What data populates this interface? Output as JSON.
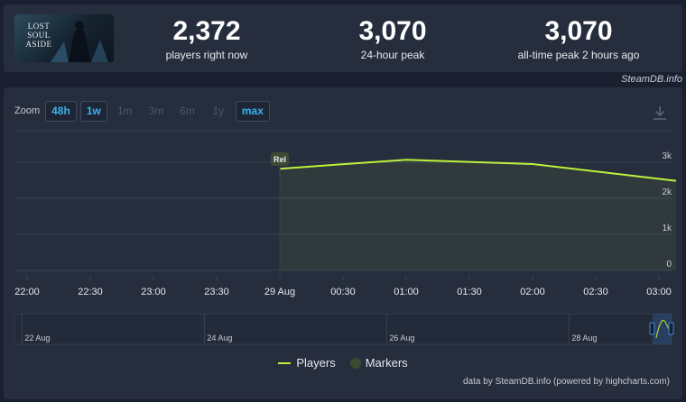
{
  "game": {
    "logo_text": "LOST SOUL ASIDE"
  },
  "stats": [
    {
      "value": "2,372",
      "label": "players right now"
    },
    {
      "value": "3,070",
      "label": "24-hour peak"
    },
    {
      "value": "3,070",
      "label": "all-time peak 2 hours ago"
    }
  ],
  "source_credit": "SteamDB.info",
  "zoom": {
    "label": "Zoom",
    "buttons": [
      {
        "label": "48h",
        "state": "active"
      },
      {
        "label": "1w",
        "state": "active"
      },
      {
        "label": "1m",
        "state": "disabled"
      },
      {
        "label": "3m",
        "state": "disabled"
      },
      {
        "label": "6m",
        "state": "disabled"
      },
      {
        "label": "1y",
        "state": "disabled"
      },
      {
        "label": "max",
        "state": "active"
      }
    ]
  },
  "legend": {
    "players": "Players",
    "markers": "Markers"
  },
  "credits": "data by SteamDB.info (powered by highcharts.com)",
  "chart_data": {
    "type": "area",
    "series": [
      {
        "name": "Players",
        "color": "#bcf23b",
        "points": [
          {
            "t": "2025-08-29 00:00",
            "v": 2820
          },
          {
            "t": "2025-08-29 01:00",
            "v": 3070
          },
          {
            "t": "2025-08-29 02:00",
            "v": 2950
          },
          {
            "t": "2025-08-29 03:00",
            "v": 2540
          }
        ]
      }
    ],
    "markers": [
      {
        "t": "2025-08-29 00:00",
        "label": "Rel"
      }
    ],
    "x_range": [
      "2025-08-28 22:00",
      "2025-08-29 03:00"
    ],
    "x_ticks": [
      {
        "t": "2025-08-28 22:00",
        "label": "22:00"
      },
      {
        "t": "2025-08-28 22:30",
        "label": "22:30"
      },
      {
        "t": "2025-08-28 23:00",
        "label": "23:00"
      },
      {
        "t": "2025-08-28 23:30",
        "label": "23:30"
      },
      {
        "t": "2025-08-29 00:00",
        "label": "29 Aug"
      },
      {
        "t": "2025-08-29 00:30",
        "label": "00:30"
      },
      {
        "t": "2025-08-29 01:00",
        "label": "01:00"
      },
      {
        "t": "2025-08-29 01:30",
        "label": "01:30"
      },
      {
        "t": "2025-08-29 02:00",
        "label": "02:00"
      },
      {
        "t": "2025-08-29 02:30",
        "label": "02:30"
      },
      {
        "t": "2025-08-29 03:00",
        "label": "03:00"
      }
    ],
    "y_range": [
      0,
      3000
    ],
    "y_ticks": [
      {
        "v": 0,
        "label": "0"
      },
      {
        "v": 1000,
        "label": "1k"
      },
      {
        "v": 2000,
        "label": "2k"
      },
      {
        "v": 3000,
        "label": "3k"
      }
    ],
    "navigator": {
      "x_range": [
        "2025-08-21 22:00",
        "2025-08-29 03:00"
      ],
      "ticks": [
        {
          "t": "2025-08-22 00:00",
          "label": "22 Aug"
        },
        {
          "t": "2025-08-24 00:00",
          "label": "24 Aug"
        },
        {
          "t": "2025-08-26 00:00",
          "label": "26 Aug"
        },
        {
          "t": "2025-08-28 00:00",
          "label": "28 Aug"
        }
      ]
    },
    "grid": true,
    "legend_position": "bottom-center"
  }
}
